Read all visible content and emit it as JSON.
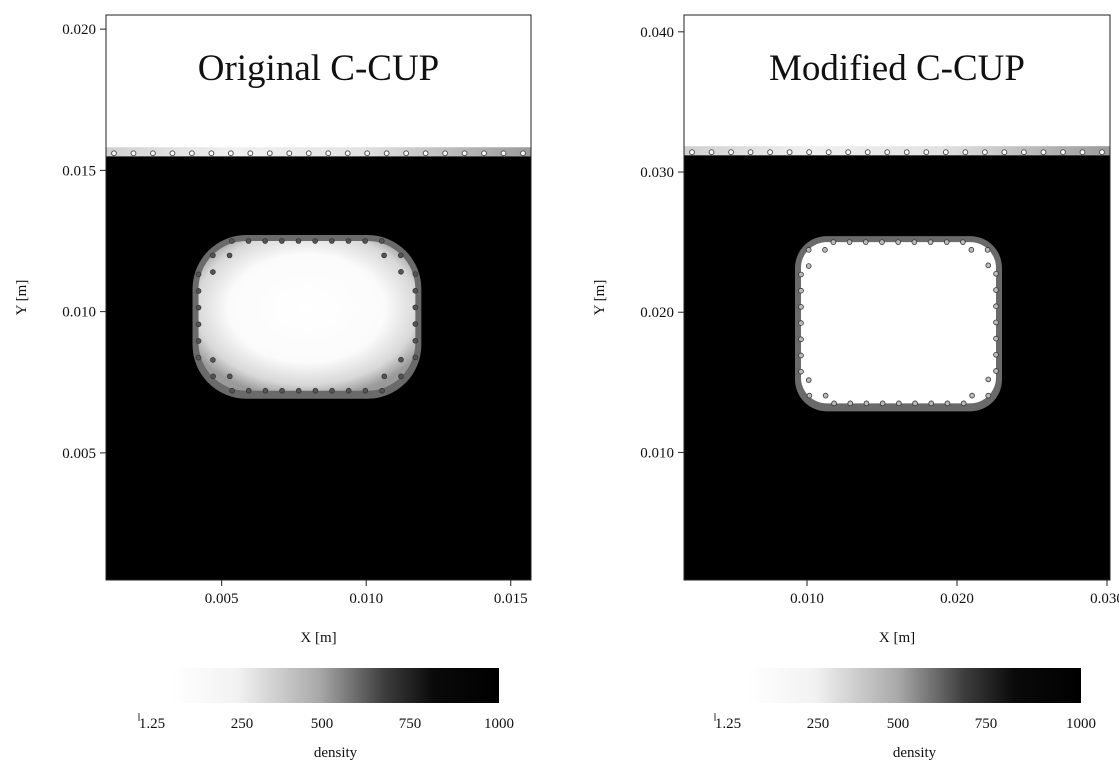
{
  "chart_data": [
    {
      "type": "heatmap",
      "title": "Original C-CUP",
      "xlabel": "X [m]",
      "ylabel": "Y [m]",
      "xlim": [
        0.001,
        0.0157
      ],
      "ylim": [
        0.0005,
        0.0205
      ],
      "x_ticks": [
        0.005,
        0.01,
        0.015
      ],
      "x_tick_labels": [
        "0.005",
        "0.010",
        "0.015"
      ],
      "y_ticks": [
        0.005,
        0.01,
        0.015,
        0.02
      ],
      "y_tick_labels": [
        "0.005",
        "0.010",
        "0.015",
        "0.020"
      ],
      "field": "density",
      "fluid_surface_y": 0.0155,
      "cavity": {
        "x_min": 0.0042,
        "x_max": 0.0117,
        "y_min": 0.0072,
        "y_max": 0.0125
      },
      "colorbar": {
        "label": "density",
        "ticks": [
          1.25,
          250,
          500,
          750,
          1000
        ],
        "tick_labels": [
          "1.25",
          "250",
          "500",
          "750",
          "1000"
        ]
      }
    },
    {
      "type": "heatmap",
      "title": "Modified C-CUP",
      "xlabel": "X [m]",
      "ylabel": "Y [m]",
      "xlim": [
        0.0018,
        0.0302
      ],
      "ylim": [
        0.0009,
        0.0412
      ],
      "x_ticks": [
        0.01,
        0.02,
        0.03
      ],
      "x_tick_labels": [
        "0.010",
        "0.020",
        "0.030"
      ],
      "y_ticks": [
        0.01,
        0.02,
        0.03,
        0.04
      ],
      "y_tick_labels": [
        "0.010",
        "0.020",
        "0.030",
        "0.040"
      ],
      "field": "density",
      "fluid_surface_y": 0.0312,
      "cavity": {
        "x_min": 0.0096,
        "x_max": 0.0226,
        "y_min": 0.0135,
        "y_max": 0.025
      },
      "colorbar": {
        "label": "density",
        "ticks": [
          1.25,
          250,
          500,
          750,
          1000
        ],
        "tick_labels": [
          "1.25",
          "250",
          "500",
          "750",
          "1000"
        ]
      }
    }
  ]
}
